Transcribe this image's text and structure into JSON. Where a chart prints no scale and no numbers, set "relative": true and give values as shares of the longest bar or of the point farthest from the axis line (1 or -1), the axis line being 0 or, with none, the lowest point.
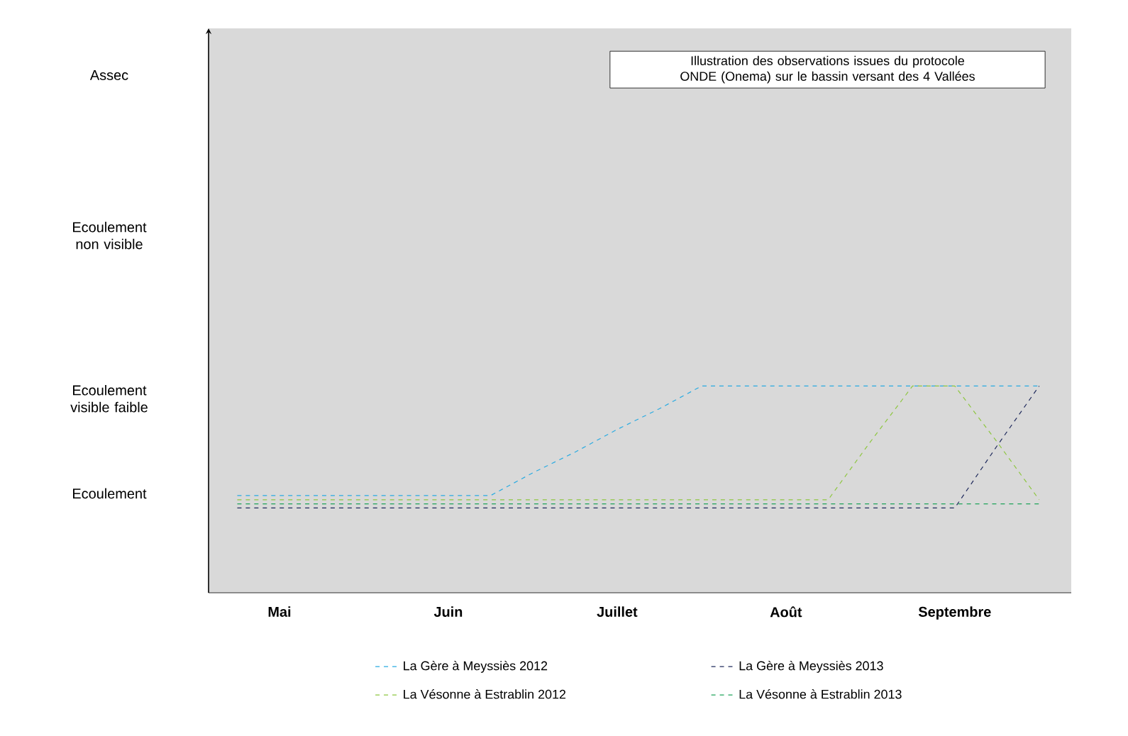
{
  "chart_data": {
    "type": "line",
    "relative": true,
    "categories": [
      null,
      "Mai",
      null,
      null,
      null,
      "Juin",
      null,
      null,
      null,
      "Juillet",
      null,
      null,
      null,
      "Août",
      null,
      null,
      null,
      "Septembre",
      null,
      null
    ],
    "series": [
      {
        "name": "La Gère à Meyssiès 2012",
        "color": "#29abe2",
        "values": [
          0.47,
          0.47,
          0.47,
          0.47,
          0.47,
          0.47,
          0.47,
          0.58,
          0.68,
          0.79,
          0.89,
          1,
          1,
          1,
          1,
          1,
          1,
          1,
          1,
          1
        ]
      },
      {
        "name": "La Gère à Meyssiès 2013",
        "color": "#1f2a5c",
        "values": [
          0.41,
          0.41,
          0.41,
          0.41,
          0.41,
          0.41,
          0.41,
          0.41,
          0.41,
          0.41,
          0.41,
          0.41,
          0.41,
          0.41,
          0.41,
          0.41,
          0.41,
          0.41,
          0.71,
          1
        ]
      },
      {
        "name": "La Vésonne à Estrablin 2012",
        "color": "#8dc63f",
        "values": [
          0.45,
          0.45,
          0.45,
          0.45,
          0.45,
          0.45,
          0.45,
          0.45,
          0.45,
          0.45,
          0.45,
          0.45,
          0.45,
          0.45,
          0.45,
          0.73,
          1,
          1,
          0.73,
          0.45
        ]
      },
      {
        "name": "La Vésonne à Estrablin 2013",
        "color": "#1fa35a",
        "values": [
          0.43,
          0.43,
          0.43,
          0.43,
          0.43,
          0.43,
          0.43,
          0.43,
          0.43,
          0.43,
          0.43,
          0.43,
          0.43,
          0.43,
          0.43,
          0.43,
          0.43,
          0.43,
          0.43,
          0.43
        ]
      }
    ],
    "annotations": [
      "Illustration des observations issues du protocole ONDE (Onema) sur le bassin versant des 4 Vallées",
      "Assec",
      "Ecoulement non visible",
      "Ecoulement visible faible",
      "Ecoulement"
    ],
    "legend": "bottom",
    "marker": "none",
    "line_style": "dashed"
  }
}
